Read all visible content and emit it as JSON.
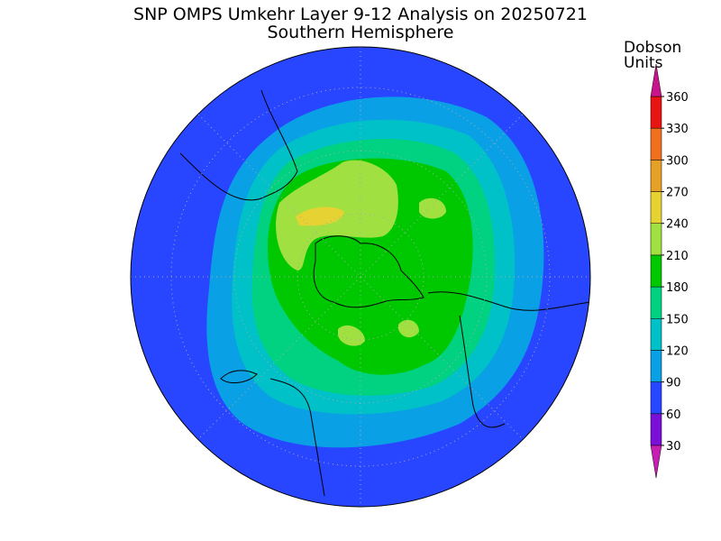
{
  "title": "SNP OMPS Umkehr Layer 9-12 Analysis on 20250721",
  "subtitle": "Southern Hemisphere",
  "colorbar": {
    "label": [
      "Dobson",
      "Units"
    ],
    "ticks": [
      30,
      60,
      90,
      120,
      150,
      180,
      210,
      240,
      270,
      300,
      330,
      360
    ],
    "colors": [
      "#c81eb4",
      "#7a10d8",
      "#2846ff",
      "#0aa0e6",
      "#00c0c8",
      "#00d282",
      "#00c800",
      "#a0e040",
      "#e6d232",
      "#e6a028",
      "#f07020",
      "#e81414",
      "#c8148c"
    ]
  }
}
